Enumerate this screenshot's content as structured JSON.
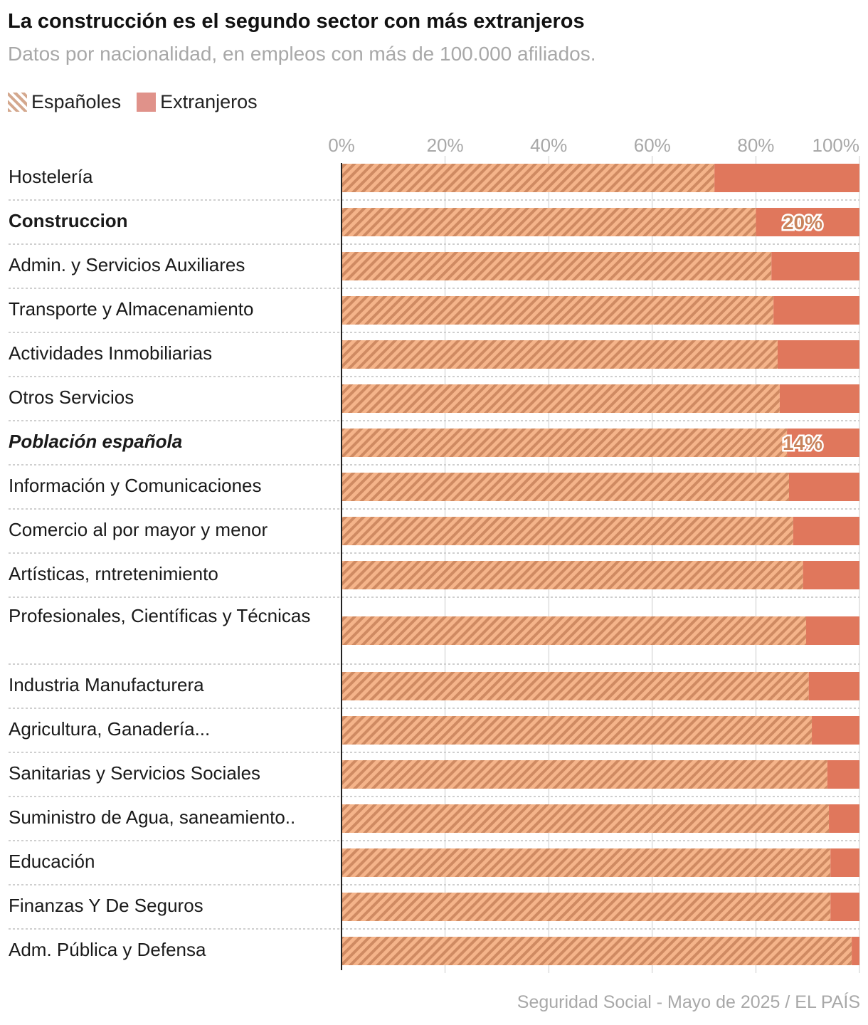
{
  "title": "La construcción es el segundo sector con más extranjeros",
  "subtitle": "Datos por nacionalidad, en empleos con más de 100.000 afiliados.",
  "source": "Seguridad Social - Mayo de 2025 / EL PAÍS",
  "colors": {
    "espanoles_light": "#f5b48a",
    "espanoles_dark": "#cf8a62",
    "extranjeros": "#e0775c",
    "label": "#c9835c"
  },
  "chart_data": {
    "type": "bar",
    "orientation": "horizontal-stacked-100",
    "title": "La construcción es el segundo sector con más extranjeros",
    "subtitle": "Datos por nacionalidad, en empleos con más de 100.000 afiliados.",
    "xlim": [
      0,
      100
    ],
    "ticks": [
      "0%",
      "20%",
      "40%",
      "60%",
      "80%",
      "100%"
    ],
    "tick_values": [
      0,
      20,
      40,
      60,
      80,
      100
    ],
    "grid": true,
    "legend": "top-left",
    "legend_entries": [
      "Españoles",
      "Extranjeros"
    ],
    "categories": [
      "Hostelería",
      "Construccion",
      "Admin. y Servicios Auxiliares",
      "Transporte y Almacenamiento",
      "Actividades Inmobiliarias",
      "Otros Servicios",
      "Población española",
      "Información y Comunicaciones",
      "Comercio al por mayor y menor",
      "Artísticas, rntretenimiento",
      "Profesionales, Científicas y Técnicas",
      "Industria Manufacturera",
      "Agricultura, Ganadería...",
      "Sanitarias y Servicios Sociales",
      "Suministro de Agua, saneamiento..",
      "Educación",
      "Finanzas Y De Seguros",
      "Adm. Pública y Defensa"
    ],
    "category_style": [
      "normal",
      "bold",
      "normal",
      "normal",
      "normal",
      "normal",
      "bold-italic",
      "normal",
      "normal",
      "normal",
      "normal",
      "normal",
      "normal",
      "normal",
      "normal",
      "normal",
      "normal",
      "normal"
    ],
    "series": [
      {
        "name": "Españoles",
        "pattern": "hatched",
        "values": [
          72,
          80,
          83,
          83.4,
          84.2,
          84.6,
          86,
          86.4,
          87.2,
          89.1,
          89.7,
          90.2,
          90.8,
          93.8,
          94.1,
          94.4,
          94.4,
          98.5
        ]
      },
      {
        "name": "Extranjeros",
        "values": [
          28,
          20,
          17,
          16.6,
          15.8,
          15.4,
          14,
          13.6,
          12.8,
          10.9,
          10.3,
          9.8,
          9.2,
          6.2,
          5.9,
          5.6,
          5.6,
          1.5
        ]
      }
    ],
    "annotations": [
      {
        "category": "Construccion",
        "text": "20%"
      },
      {
        "category": "Población española",
        "text": "14%"
      }
    ]
  }
}
